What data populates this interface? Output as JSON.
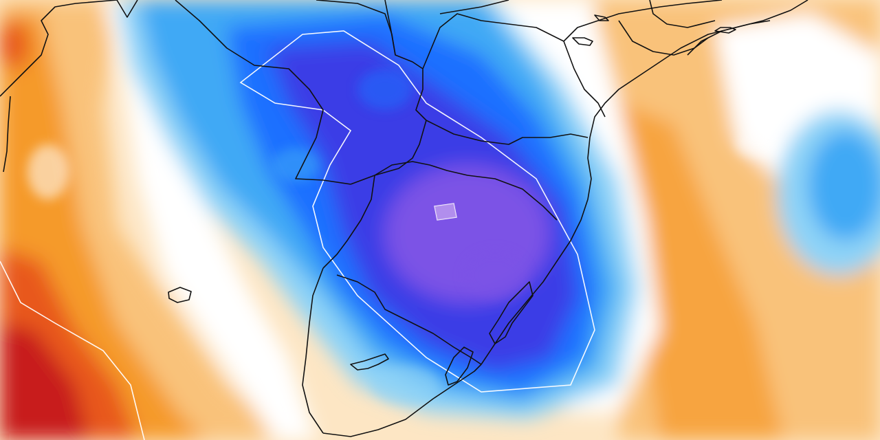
{
  "map": {
    "palette": {
      "very_cold": "#7b52e6",
      "cold_core": "#3b3ce6",
      "cold": "#1f6fff",
      "cool": "#3fa9f5",
      "chilly": "#8ed3f7",
      "near_normal": "#ffffff",
      "mild": "#fde6c4",
      "warm": "#f9c27a",
      "hot": "#f59a2c",
      "very_hot": "#e8581c",
      "extreme": "#c81e1e",
      "contour": "#ffffff",
      "borders": "#111111"
    }
  }
}
